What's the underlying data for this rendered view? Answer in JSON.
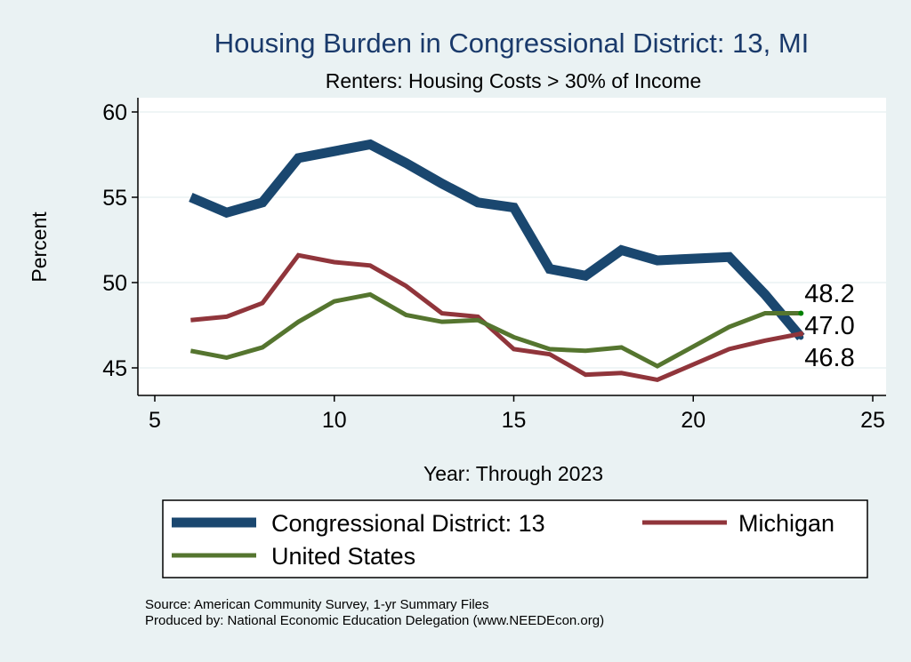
{
  "chart_data": {
    "type": "line",
    "title": "Housing Burden in Congressional District:  13, MI",
    "subtitle": "Renters: Housing Costs > 30% of Income",
    "xlabel": "Year: Through 2023",
    "ylabel": "Percent",
    "xlim": [
      5,
      25
    ],
    "ylim": [
      44,
      61
    ],
    "xticks": [
      5,
      10,
      15,
      20,
      25
    ],
    "yticks": [
      45,
      50,
      55,
      60
    ],
    "grid": true,
    "legend_position": "bottom",
    "x": [
      6,
      7,
      8,
      9,
      10,
      11,
      12,
      13,
      14,
      15,
      16,
      17,
      18,
      19,
      21,
      22,
      23
    ],
    "series": [
      {
        "name": "Congressional District:  13",
        "color": "#1a476f",
        "values": [
          55.0,
          54.1,
          54.7,
          57.3,
          57.7,
          58.1,
          57.0,
          55.8,
          54.7,
          54.4,
          50.8,
          50.4,
          51.9,
          51.3,
          51.5,
          49.3,
          46.8
        ],
        "end_label": "46.8"
      },
      {
        "name": "Michigan",
        "color": "#90353b",
        "values": [
          47.8,
          48.0,
          48.8,
          51.6,
          51.2,
          51.0,
          49.8,
          48.2,
          48.0,
          46.1,
          45.8,
          44.6,
          44.7,
          44.3,
          46.1,
          46.6,
          47.0
        ],
        "end_label": "47.0"
      },
      {
        "name": "United States",
        "color": "#55752f",
        "values": [
          46.0,
          45.6,
          46.2,
          47.7,
          48.9,
          49.3,
          48.1,
          47.7,
          47.8,
          46.8,
          46.1,
          46.0,
          46.2,
          45.1,
          47.4,
          48.2,
          48.2
        ],
        "end_label": "48.2"
      }
    ]
  },
  "notes": {
    "source": "Source: American Community Survey, 1-yr Summary Files",
    "produced": "Produced by: National Economic Education Delegation (www.NEEDEcon.org)"
  }
}
